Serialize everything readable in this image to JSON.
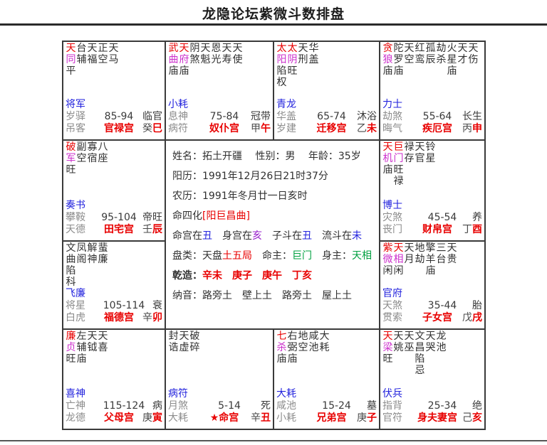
{
  "title": "龙隐论坛紫微斗数排盘",
  "colors": {
    "main_star_top": "#e80000",
    "main_star_bottom": "#cc2fcc",
    "twelve_god": "#2222dd",
    "year_god": "#8c8c8c",
    "palace_name": "#e80000",
    "branch_char": "#e80000",
    "life_master": "#00a040",
    "grid_line": "#3a3a3a"
  },
  "center": {
    "lines": [
      {
        "id": "name-line",
        "segs": [
          {
            "t": "姓名：拓土开疆　 性别：男　 年龄：35岁"
          }
        ]
      },
      {
        "id": "solar-line",
        "segs": [
          {
            "t": "阳历：1991年12月26日21时37分"
          }
        ]
      },
      {
        "id": "lunar-line",
        "segs": [
          {
            "t": "农历：1991年冬月廿一日亥时"
          }
        ]
      },
      {
        "id": "sihua-line",
        "segs": [
          {
            "t": "命四化"
          },
          {
            "t": "[阳巨昌曲]",
            "c": "red"
          }
        ]
      },
      {
        "id": "position-line",
        "segs": [
          {
            "t": "命宫在"
          },
          {
            "t": "丑",
            "c": "blue"
          },
          {
            "t": "　身宫在"
          },
          {
            "t": "亥",
            "c": "purple"
          },
          {
            "t": "　子斗在"
          },
          {
            "t": "丑",
            "c": "blue"
          },
          {
            "t": "　流斗在"
          },
          {
            "t": "未",
            "c": "blue"
          }
        ]
      },
      {
        "id": "pan-type-line",
        "segs": [
          {
            "t": "盘类：天盘"
          },
          {
            "t": "土五局",
            "c": "red"
          },
          {
            "t": "　命主："
          },
          {
            "t": "巨门",
            "c": "green"
          },
          {
            "t": "　身主："
          },
          {
            "t": "天相",
            "c": "green"
          }
        ]
      },
      {
        "id": "bazi-line",
        "segs": [
          {
            "t": "乾造：",
            "c": "b"
          },
          {
            "t": "辛未",
            "c": "redb"
          },
          {
            "t": "　",
            "c": "b"
          },
          {
            "t": "庚子",
            "c": "redb"
          },
          {
            "t": "　",
            "c": "b"
          },
          {
            "t": "庚午",
            "c": "redb"
          },
          {
            "t": "　",
            "c": "b"
          },
          {
            "t": "丁亥",
            "c": "redb"
          }
        ]
      },
      {
        "id": "nayin-line",
        "segs": [
          {
            "t": "纳音：路旁土　壁上土　路旁土　屋上土"
          }
        ]
      }
    ]
  },
  "palaces": [
    {
      "id": "si",
      "area": "a",
      "stars": [
        {
          "n": "天同",
          "b": "平",
          "m": 1
        },
        {
          "n": "台辅"
        },
        {
          "n": "天福"
        },
        {
          "n": "正空"
        },
        {
          "n": "天马"
        }
      ],
      "god": "将军",
      "r1": [
        "岁驿",
        "85-94",
        "临官"
      ],
      "r2": {
        "l": "吊客",
        "m": "官禄宫",
        "s": "癸",
        "b": "巳"
      }
    },
    {
      "id": "wu",
      "area": "b",
      "stars": [
        {
          "n": "武曲",
          "b": "庙",
          "m": 1
        },
        {
          "n": "天府",
          "b": "庙",
          "m": 1
        },
        {
          "n": "阴煞"
        },
        {
          "n": "天魁"
        },
        {
          "n": "恩光"
        },
        {
          "n": "天寿"
        },
        {
          "n": "天使"
        }
      ],
      "god": "小耗",
      "r1": [
        "息神",
        "75-84",
        "冠带"
      ],
      "r2": {
        "l": "病符",
        "m": "奴仆宫",
        "s": "甲",
        "b": "午"
      }
    },
    {
      "id": "wei",
      "area": "c",
      "stars": [
        {
          "n": "太阳",
          "b": "陷",
          "h": "权",
          "m": 1
        },
        {
          "n": "太阴",
          "b": "旺",
          "m": 1
        },
        {
          "n": "天刑"
        },
        {
          "n": "华盖"
        }
      ],
      "god": "青龙",
      "r1": [
        "华盖",
        "65-74",
        "沐浴"
      ],
      "r2": {
        "l": "岁建",
        "m": "迁移宫",
        "s": "乙",
        "b": "未"
      }
    },
    {
      "id": "shen",
      "area": "d",
      "stars": [
        {
          "n": "贪狼",
          "b": "庙",
          "m": 1
        },
        {
          "n": "陀罗",
          "b": "庙"
        },
        {
          "n": "天空"
        },
        {
          "n": "红鸾"
        },
        {
          "n": "孤辰"
        },
        {
          "n": "劫杀"
        },
        {
          "n": "火星",
          "b": "庙"
        },
        {
          "n": "天才"
        },
        {
          "n": "天伤"
        }
      ],
      "god": "力士",
      "r1": [
        "劫煞",
        "55-64",
        "长生"
      ],
      "r2": {
        "l": "晦气",
        "m": "疾厄宫",
        "s": "丙",
        "b": "申"
      }
    },
    {
      "id": "chen",
      "area": "e",
      "stars": [
        {
          "n": "破军",
          "b": "旺",
          "m": 1
        },
        {
          "n": "副空"
        },
        {
          "n": "寡宿"
        },
        {
          "n": "八座"
        }
      ],
      "god": "奏书",
      "r1": [
        "攀鞍",
        "95-104",
        "帝旺"
      ],
      "r2": {
        "l": "天德",
        "m": "田宅宫",
        "s": "壬",
        "b": "辰"
      }
    },
    {
      "id": "you",
      "area": "f",
      "stars": [
        {
          "n": "天机",
          "b": "庙",
          "m": 1
        },
        {
          "n": "巨门",
          "b": "旺",
          "h": "禄",
          "m": 1
        },
        {
          "n": "禄存"
        },
        {
          "n": "天官"
        },
        {
          "n": "铃星"
        }
      ],
      "god": "博士",
      "r1": [
        "灾煞",
        "45-54",
        "养"
      ],
      "r2": {
        "l": "丧门",
        "m": "财帛宫",
        "s": "丁",
        "b": "酉"
      }
    },
    {
      "id": "mao",
      "area": "g",
      "stars": [
        {
          "n": "文曲",
          "b": "陷",
          "h": "科"
        },
        {
          "n": "凤阁"
        },
        {
          "n": "解神"
        },
        {
          "n": "蜚廉"
        }
      ],
      "god": "飞廉",
      "r1": [
        "将星",
        "105-114",
        "衰"
      ],
      "r2": {
        "l": "白虎",
        "m": "福德宫",
        "s": "辛",
        "b": "卯"
      }
    },
    {
      "id": "xu",
      "area": "h",
      "stars": [
        {
          "n": "紫微",
          "b": "闲",
          "m": 1
        },
        {
          "n": "天相",
          "b": "闲",
          "m": 1
        },
        {
          "n": "天月"
        },
        {
          "n": "地劫"
        },
        {
          "n": "擎羊",
          "b": "庙"
        },
        {
          "n": "三台"
        },
        {
          "n": "天贵"
        }
      ],
      "god": "官府",
      "r1": [
        "天煞",
        "35-44",
        "胎"
      ],
      "r2": {
        "l": "贯索",
        "m": "子女宫",
        "s": "戊",
        "b": "戌"
      }
    },
    {
      "id": "yin",
      "area": "i",
      "stars": [
        {
          "n": "廉贞",
          "b": "旺",
          "m": 1
        },
        {
          "n": "左辅",
          "b": "庙"
        },
        {
          "n": "天钺"
        },
        {
          "n": "天喜"
        }
      ],
      "god": "喜神",
      "r1": [
        "亡神",
        "115-124",
        "病"
      ],
      "r2": {
        "l": "龙德",
        "m": "父母宫",
        "s": "庚",
        "b": "寅"
      }
    },
    {
      "id": "chou",
      "area": "j",
      "stars": [
        {
          "n": "封诰"
        },
        {
          "n": "天虚"
        },
        {
          "n": "破碎"
        }
      ],
      "god": "病符",
      "r1": [
        "月煞",
        "5-14",
        "死"
      ],
      "r2": {
        "l": "大耗",
        "m": "★命宫",
        "s": "辛",
        "b": "丑"
      }
    },
    {
      "id": "zi",
      "area": "k",
      "stars": [
        {
          "n": "七杀",
          "b": "庙",
          "m": 1
        },
        {
          "n": "右弼",
          "b": "庙"
        },
        {
          "n": "地空"
        },
        {
          "n": "咸池"
        },
        {
          "n": "大耗"
        }
      ],
      "god": "大耗",
      "r1": [
        "咸池",
        "15-24",
        "墓"
      ],
      "r2": {
        "l": "小耗",
        "m": "兄弟宫",
        "s": "庚",
        "b": "子"
      }
    },
    {
      "id": "hai",
      "area": "l",
      "stars": [
        {
          "n": "天梁",
          "b": "旺",
          "m": 1
        },
        {
          "n": "天姚"
        },
        {
          "n": "天巫"
        },
        {
          "n": "文昌",
          "b": "陷",
          "h": "忌"
        },
        {
          "n": "天哭"
        },
        {
          "n": "龙池"
        }
      ],
      "god": "伏兵",
      "r1": [
        "指背",
        "25-34",
        "绝"
      ],
      "r2": {
        "l": "官符",
        "m": "身夫妻宫",
        "s": "己",
        "b": "亥"
      }
    }
  ]
}
